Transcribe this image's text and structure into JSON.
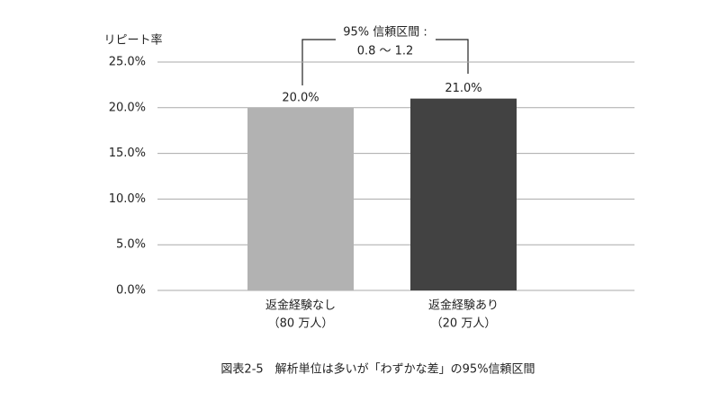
{
  "chart_data": {
    "type": "bar",
    "y_label": "リピート率",
    "categories": [
      "返金経験なし",
      "返金経験あり"
    ],
    "category_sublabels": [
      "（80 万人）",
      "（20 万人）"
    ],
    "values": [
      20,
      21
    ],
    "value_labels": [
      "20.0%",
      "21.0%"
    ],
    "colors": [
      "#b2b2b2",
      "#424242"
    ],
    "ylim": [
      0,
      25
    ],
    "yticks": [
      {
        "value": 0,
        "label": "0.0%"
      },
      {
        "value": 5,
        "label": "5.0%"
      },
      {
        "value": 10,
        "label": "10.0%"
      },
      {
        "value": 15,
        "label": "15.0%"
      },
      {
        "value": 20,
        "label": "20.0%"
      },
      {
        "value": 25,
        "label": "25.0%"
      }
    ],
    "grid": true,
    "annotation": [
      "95% 信頼区間 :",
      "0.8 〜 1.2"
    ],
    "caption": "図表2-5　解析単位は多いが「わずかな差」の95%信頼区間"
  }
}
